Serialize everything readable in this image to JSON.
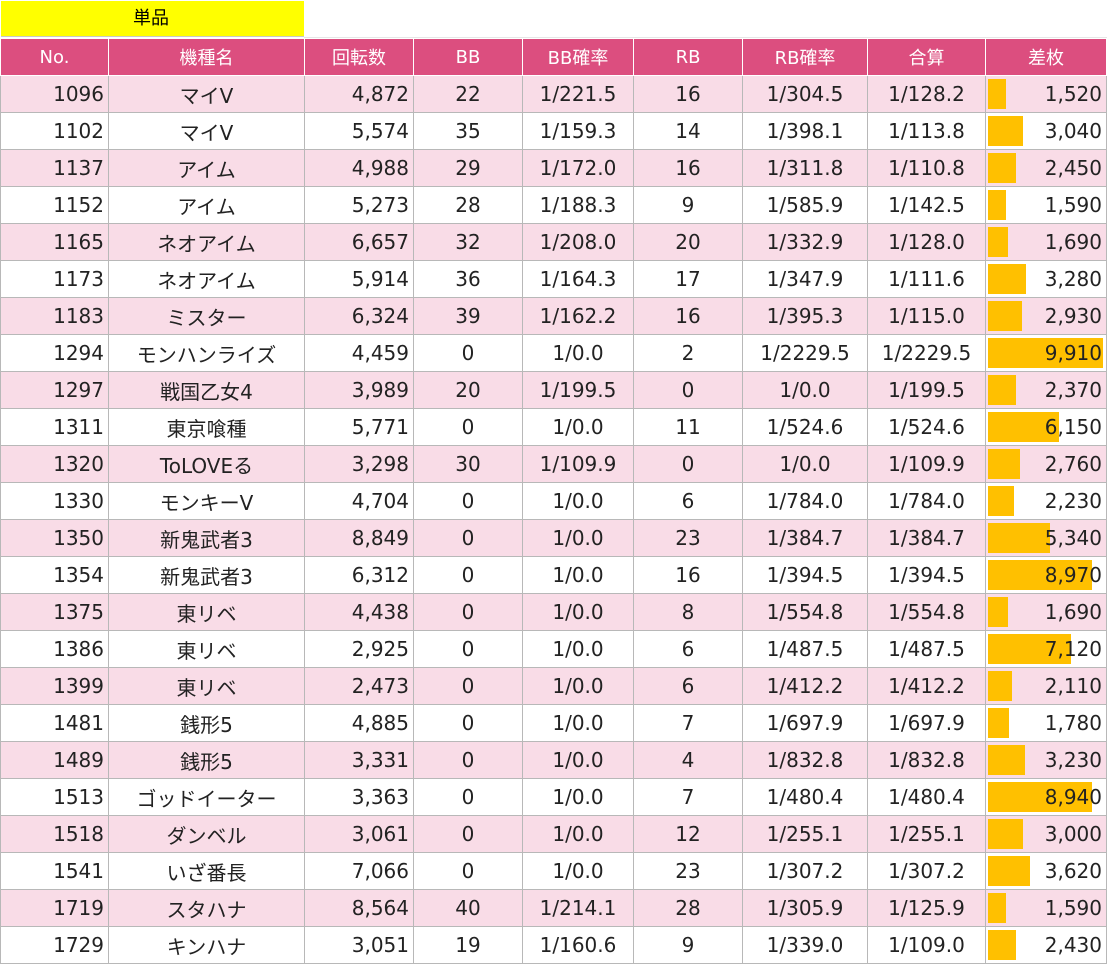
{
  "sheet_label": "単品",
  "headers": [
    "No.",
    "機種名",
    "回転数",
    "BB",
    "BB確率",
    "RB",
    "RB確率",
    "合算",
    "差枚"
  ],
  "colors": {
    "header_bg": "#dc4e7f",
    "row_alt_bg": "#f9dce7",
    "bar": "#ffc000",
    "label_bg": "#ffff00"
  },
  "diff_bar_max": 9910,
  "rows": [
    {
      "no": "1096",
      "machine": "マイV",
      "spins": "4,872",
      "bb": "22",
      "bb_rate": "1/221.5",
      "rb": "16",
      "rb_rate": "1/304.5",
      "combined": "1/128.2",
      "diff": "1,520",
      "diff_value": 1520
    },
    {
      "no": "1102",
      "machine": "マイV",
      "spins": "5,574",
      "bb": "35",
      "bb_rate": "1/159.3",
      "rb": "14",
      "rb_rate": "1/398.1",
      "combined": "1/113.8",
      "diff": "3,040",
      "diff_value": 3040
    },
    {
      "no": "1137",
      "machine": "アイム",
      "spins": "4,988",
      "bb": "29",
      "bb_rate": "1/172.0",
      "rb": "16",
      "rb_rate": "1/311.8",
      "combined": "1/110.8",
      "diff": "2,450",
      "diff_value": 2450
    },
    {
      "no": "1152",
      "machine": "アイム",
      "spins": "5,273",
      "bb": "28",
      "bb_rate": "1/188.3",
      "rb": "9",
      "rb_rate": "1/585.9",
      "combined": "1/142.5",
      "diff": "1,590",
      "diff_value": 1590
    },
    {
      "no": "1165",
      "machine": "ネオアイム",
      "spins": "6,657",
      "bb": "32",
      "bb_rate": "1/208.0",
      "rb": "20",
      "rb_rate": "1/332.9",
      "combined": "1/128.0",
      "diff": "1,690",
      "diff_value": 1690
    },
    {
      "no": "1173",
      "machine": "ネオアイム",
      "spins": "5,914",
      "bb": "36",
      "bb_rate": "1/164.3",
      "rb": "17",
      "rb_rate": "1/347.9",
      "combined": "1/111.6",
      "diff": "3,280",
      "diff_value": 3280
    },
    {
      "no": "1183",
      "machine": "ミスター",
      "spins": "6,324",
      "bb": "39",
      "bb_rate": "1/162.2",
      "rb": "16",
      "rb_rate": "1/395.3",
      "combined": "1/115.0",
      "diff": "2,930",
      "diff_value": 2930
    },
    {
      "no": "1294",
      "machine": "モンハンライズ",
      "spins": "4,459",
      "bb": "0",
      "bb_rate": "1/0.0",
      "rb": "2",
      "rb_rate": "1/2229.5",
      "combined": "1/2229.5",
      "diff": "9,910",
      "diff_value": 9910
    },
    {
      "no": "1297",
      "machine": "戦国乙女4",
      "spins": "3,989",
      "bb": "20",
      "bb_rate": "1/199.5",
      "rb": "0",
      "rb_rate": "1/0.0",
      "combined": "1/199.5",
      "diff": "2,370",
      "diff_value": 2370
    },
    {
      "no": "1311",
      "machine": "東京喰種",
      "spins": "5,771",
      "bb": "0",
      "bb_rate": "1/0.0",
      "rb": "11",
      "rb_rate": "1/524.6",
      "combined": "1/524.6",
      "diff": "6,150",
      "diff_value": 6150
    },
    {
      "no": "1320",
      "machine": "ToLOVEる",
      "spins": "3,298",
      "bb": "30",
      "bb_rate": "1/109.9",
      "rb": "0",
      "rb_rate": "1/0.0",
      "combined": "1/109.9",
      "diff": "2,760",
      "diff_value": 2760
    },
    {
      "no": "1330",
      "machine": "モンキーV",
      "spins": "4,704",
      "bb": "0",
      "bb_rate": "1/0.0",
      "rb": "6",
      "rb_rate": "1/784.0",
      "combined": "1/784.0",
      "diff": "2,230",
      "diff_value": 2230
    },
    {
      "no": "1350",
      "machine": "新鬼武者3",
      "spins": "8,849",
      "bb": "0",
      "bb_rate": "1/0.0",
      "rb": "23",
      "rb_rate": "1/384.7",
      "combined": "1/384.7",
      "diff": "5,340",
      "diff_value": 5340
    },
    {
      "no": "1354",
      "machine": "新鬼武者3",
      "spins": "6,312",
      "bb": "0",
      "bb_rate": "1/0.0",
      "rb": "16",
      "rb_rate": "1/394.5",
      "combined": "1/394.5",
      "diff": "8,970",
      "diff_value": 8970
    },
    {
      "no": "1375",
      "machine": "東リベ",
      "spins": "4,438",
      "bb": "0",
      "bb_rate": "1/0.0",
      "rb": "8",
      "rb_rate": "1/554.8",
      "combined": "1/554.8",
      "diff": "1,690",
      "diff_value": 1690
    },
    {
      "no": "1386",
      "machine": "東リベ",
      "spins": "2,925",
      "bb": "0",
      "bb_rate": "1/0.0",
      "rb": "6",
      "rb_rate": "1/487.5",
      "combined": "1/487.5",
      "diff": "7,120",
      "diff_value": 7120
    },
    {
      "no": "1399",
      "machine": "東リベ",
      "spins": "2,473",
      "bb": "0",
      "bb_rate": "1/0.0",
      "rb": "6",
      "rb_rate": "1/412.2",
      "combined": "1/412.2",
      "diff": "2,110",
      "diff_value": 2110
    },
    {
      "no": "1481",
      "machine": "銭形5",
      "spins": "4,885",
      "bb": "0",
      "bb_rate": "1/0.0",
      "rb": "7",
      "rb_rate": "1/697.9",
      "combined": "1/697.9",
      "diff": "1,780",
      "diff_value": 1780
    },
    {
      "no": "1489",
      "machine": "銭形5",
      "spins": "3,331",
      "bb": "0",
      "bb_rate": "1/0.0",
      "rb": "4",
      "rb_rate": "1/832.8",
      "combined": "1/832.8",
      "diff": "3,230",
      "diff_value": 3230
    },
    {
      "no": "1513",
      "machine": "ゴッドイーター",
      "spins": "3,363",
      "bb": "0",
      "bb_rate": "1/0.0",
      "rb": "7",
      "rb_rate": "1/480.4",
      "combined": "1/480.4",
      "diff": "8,940",
      "diff_value": 8940
    },
    {
      "no": "1518",
      "machine": "ダンベル",
      "spins": "3,061",
      "bb": "0",
      "bb_rate": "1/0.0",
      "rb": "12",
      "rb_rate": "1/255.1",
      "combined": "1/255.1",
      "diff": "3,000",
      "diff_value": 3000
    },
    {
      "no": "1541",
      "machine": "いざ番長",
      "spins": "7,066",
      "bb": "0",
      "bb_rate": "1/0.0",
      "rb": "23",
      "rb_rate": "1/307.2",
      "combined": "1/307.2",
      "diff": "3,620",
      "diff_value": 3620
    },
    {
      "no": "1719",
      "machine": "スタハナ",
      "spins": "8,564",
      "bb": "40",
      "bb_rate": "1/214.1",
      "rb": "28",
      "rb_rate": "1/305.9",
      "combined": "1/125.9",
      "diff": "1,590",
      "diff_value": 1590
    },
    {
      "no": "1729",
      "machine": "キンハナ",
      "spins": "3,051",
      "bb": "19",
      "bb_rate": "1/160.6",
      "rb": "9",
      "rb_rate": "1/339.0",
      "combined": "1/109.0",
      "diff": "2,430",
      "diff_value": 2430
    }
  ]
}
